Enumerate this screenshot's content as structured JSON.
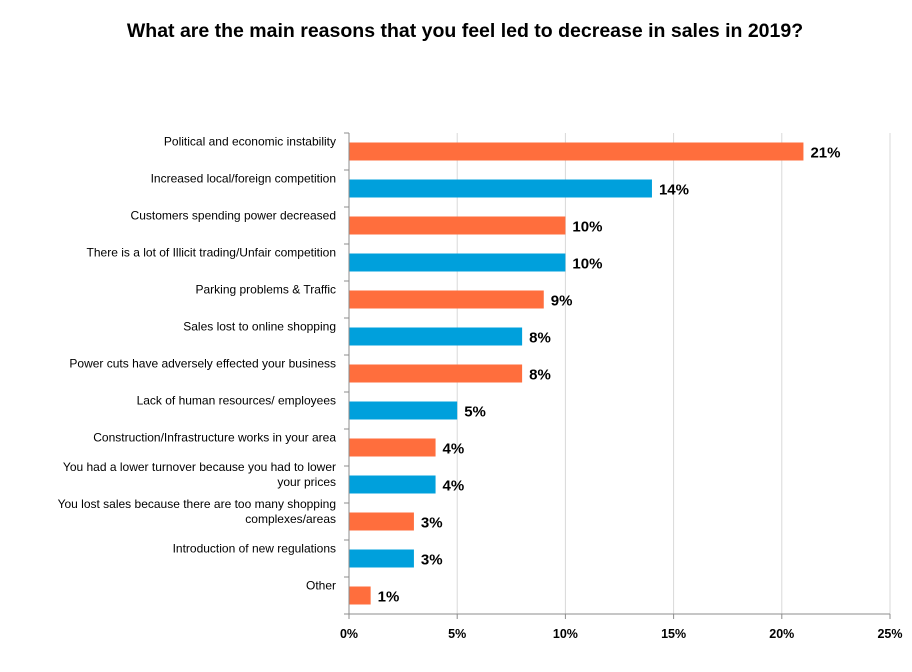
{
  "chart_data": {
    "type": "bar",
    "orientation": "horizontal",
    "title": "What are the main reasons that you feel led to decrease in sales in 2019?",
    "categories": [
      [
        "Political and economic instability"
      ],
      [
        "Increased local/foreign competition"
      ],
      [
        "Customers spending power decreased"
      ],
      [
        "There is a lot of Illicit trading/Unfair competition"
      ],
      [
        "Parking problems & Traffic"
      ],
      [
        "Sales lost to online shopping"
      ],
      [
        "Power cuts have adversely effected your business"
      ],
      [
        "Lack of human resources/ employees"
      ],
      [
        "Construction/Infrastructure works in your area"
      ],
      [
        "You had a lower turnover because you had to lower",
        "your prices"
      ],
      [
        "You lost sales because there are too many shopping",
        "complexes/areas"
      ],
      [
        "Introduction of new regulations"
      ],
      [
        "Other"
      ]
    ],
    "values": [
      21,
      14,
      10,
      10,
      9,
      8,
      8,
      5,
      4,
      4,
      3,
      3,
      1
    ],
    "data_labels": [
      "21%",
      "14%",
      "10%",
      "10%",
      "9%",
      "8%",
      "8%",
      "5%",
      "4%",
      "4%",
      "3%",
      "3%",
      "1%"
    ],
    "colors": [
      "#FF6E3D",
      "#00A0DC",
      "#FF6E3D",
      "#00A0DC",
      "#FF6E3D",
      "#00A0DC",
      "#FF6E3D",
      "#00A0DC",
      "#FF6E3D",
      "#00A0DC",
      "#FF6E3D",
      "#00A0DC",
      "#FF6E3D"
    ],
    "xlim": [
      0,
      25
    ],
    "xticks": [
      0,
      5,
      10,
      15,
      20,
      25
    ],
    "xtick_labels": [
      "0%",
      "5%",
      "10%",
      "15%",
      "20%",
      "25%"
    ],
    "grid": "vertical",
    "gridline_color": "#D9D9D9",
    "legend": "none"
  }
}
